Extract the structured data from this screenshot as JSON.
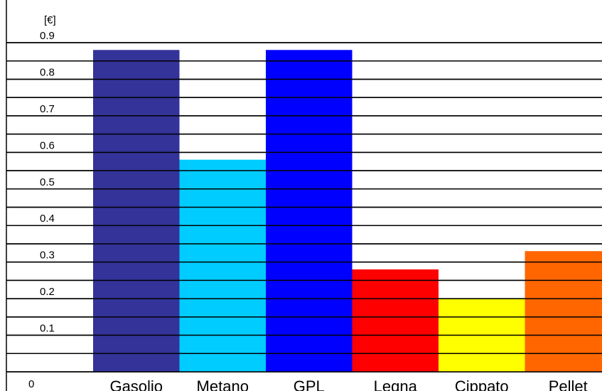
{
  "chart_data": {
    "type": "bar",
    "unit_label": "[€]",
    "categories": [
      "Gasolio",
      "Metano",
      "GPL",
      "Legna",
      "Cippato",
      "Pellet"
    ],
    "values": [
      0.88,
      0.58,
      0.88,
      0.28,
      0.2,
      0.33
    ],
    "colors": [
      "#333399",
      "#00CCFF",
      "#0000FF",
      "#FF0000",
      "#FFFF00",
      "#FF6600"
    ],
    "y_ticks": [
      "0",
      "0.1",
      "0.2",
      "0.3",
      "0.4",
      "0.5",
      "0.6",
      "0.7",
      "0.8",
      "0.9"
    ],
    "ylim": [
      0,
      0.9
    ],
    "grid": true
  }
}
